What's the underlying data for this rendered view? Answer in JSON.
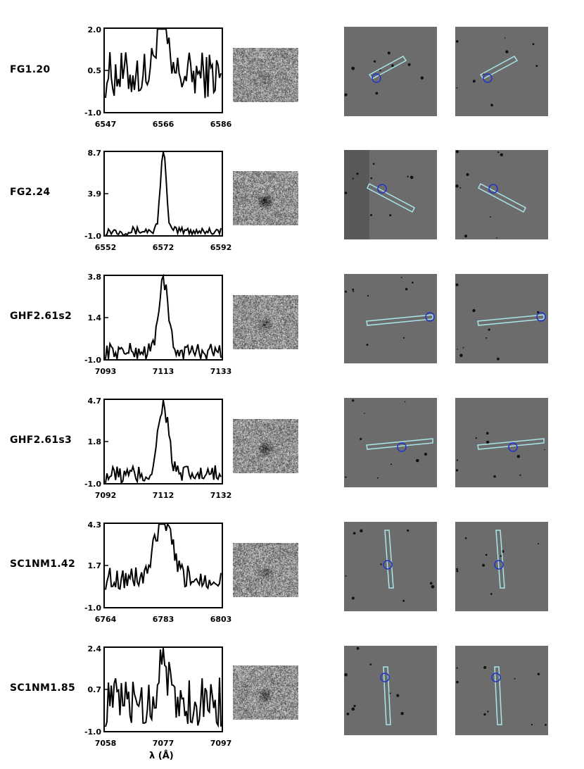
{
  "figure": {
    "x_axis_label": "λ (Å)",
    "rows": [
      {
        "name": "FG1.20",
        "y_ticks": [
          "2.0",
          "0.5",
          "-1.0"
        ],
        "x_ticks": [
          "6547",
          "6566",
          "6586"
        ],
        "y_range": [
          -1.0,
          2.0
        ],
        "x_range": [
          6547,
          6586
        ]
      },
      {
        "name": "FG2.24",
        "y_ticks": [
          "8.7",
          "3.9",
          "-1.0"
        ],
        "x_ticks": [
          "6552",
          "6572",
          "6592"
        ],
        "y_range": [
          -1.0,
          8.7
        ],
        "x_range": [
          6552,
          6592
        ]
      },
      {
        "name": "GHF2.61s2",
        "y_ticks": [
          "3.8",
          "1.4",
          "-1.0"
        ],
        "x_ticks": [
          "7093",
          "7113",
          "7133"
        ],
        "y_range": [
          -1.0,
          3.8
        ],
        "x_range": [
          7093,
          7133
        ]
      },
      {
        "name": "GHF2.61s3",
        "y_ticks": [
          "4.7",
          "1.8",
          "-1.0"
        ],
        "x_ticks": [
          "7092",
          "7112",
          "7132"
        ],
        "y_range": [
          -1.0,
          4.7
        ],
        "x_range": [
          7092,
          7132
        ]
      },
      {
        "name": "SC1NM1.42",
        "y_ticks": [
          "4.3",
          "1.7",
          "-1.0"
        ],
        "x_ticks": [
          "6764",
          "6783",
          "6803"
        ],
        "y_range": [
          -1.0,
          4.3
        ],
        "x_range": [
          6764,
          6803
        ]
      },
      {
        "name": "SC1NM1.85",
        "y_ticks": [
          "2.4",
          "0.7",
          "-1.0"
        ],
        "x_ticks": [
          "7058",
          "7077",
          "7097"
        ],
        "y_range": [
          -1.0,
          2.4
        ],
        "x_range": [
          7058,
          7097
        ]
      }
    ]
  },
  "colors": {
    "slit": "#a8e6ea",
    "circle": "#2233cc",
    "background_field": "#6c6c6c",
    "stamp": "#8a8a8a"
  }
}
